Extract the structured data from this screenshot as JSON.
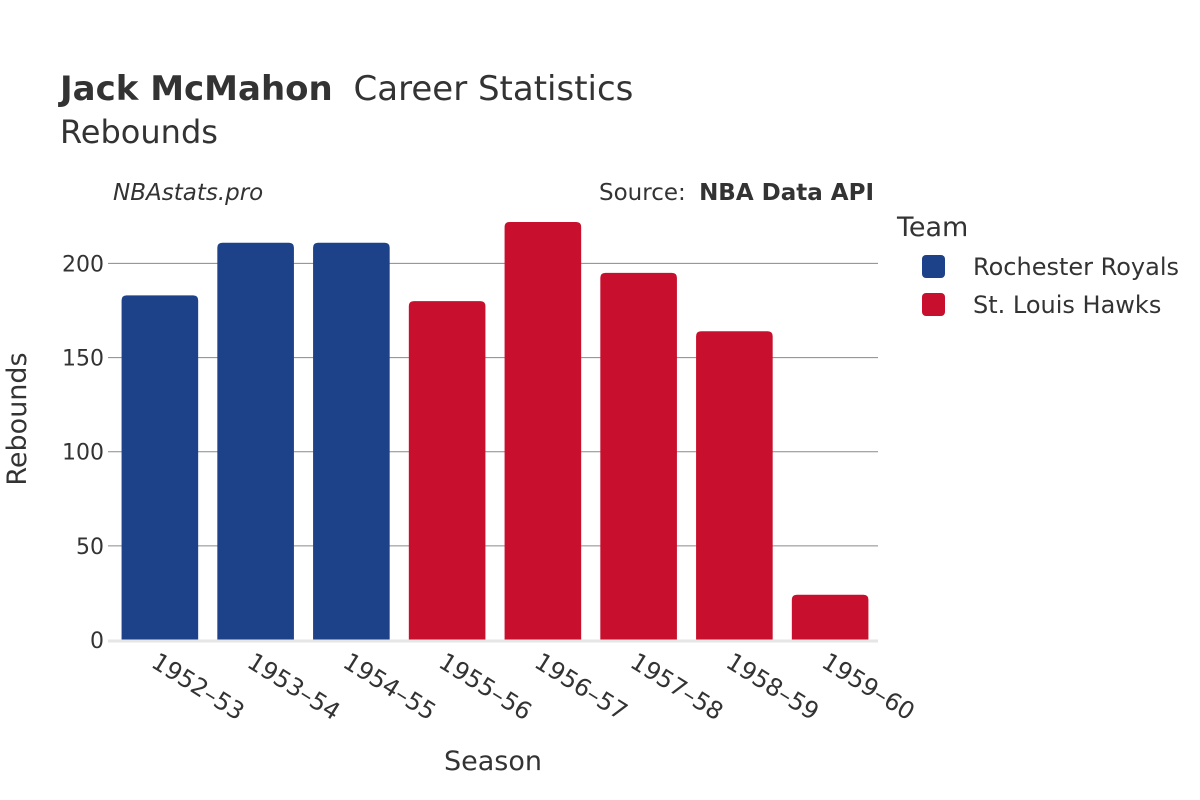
{
  "chart_data": {
    "type": "bar",
    "title": {
      "player": "Jack McMahon",
      "rest": "Career Statistics"
    },
    "subtitle": "Rebounds",
    "watermark": "NBAstats.pro",
    "source": {
      "label": "Source:",
      "name": "NBA Data API"
    },
    "xlabel": "Season",
    "ylabel": "Rebounds",
    "ylim": [
      0,
      222
    ],
    "yticks": [
      0,
      50,
      100,
      150,
      200
    ],
    "grid": true,
    "legend": {
      "title": "Team",
      "position": "right",
      "entries": [
        {
          "name": "Rochester Royals",
          "color": "#1d428a"
        },
        {
          "name": "St. Louis Hawks",
          "color": "#c8102e"
        }
      ]
    },
    "categories": [
      "1952–53",
      "1953–54",
      "1954–55",
      "1955–56",
      "1956–57",
      "1957–58",
      "1958–59",
      "1959–60"
    ],
    "values": [
      183,
      211,
      211,
      180,
      222,
      195,
      164,
      24
    ],
    "teams": [
      "Rochester Royals",
      "Rochester Royals",
      "Rochester Royals",
      "St. Louis Hawks",
      "St. Louis Hawks",
      "St. Louis Hawks",
      "St. Louis Hawks",
      "St. Louis Hawks"
    ]
  }
}
